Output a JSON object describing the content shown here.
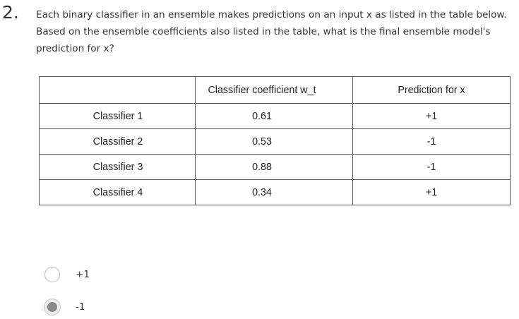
{
  "question": {
    "number": "2.",
    "text": "Each binary classifier in an ensemble makes predictions on an input x as listed in the table below. Based on the ensemble coefficients also listed in the table, what is the final ensemble model's prediction for x?"
  },
  "table": {
    "headers": [
      "",
      "Classifier coefficient w_t",
      "Prediction for x"
    ],
    "rows": [
      {
        "classifier": "Classifier 1",
        "coefficient": "0.61",
        "prediction": "+1"
      },
      {
        "classifier": "Classifier 2",
        "coefficient": "0.53",
        "prediction": "-1"
      },
      {
        "classifier": "Classifier 3",
        "coefficient": "0.88",
        "prediction": "-1"
      },
      {
        "classifier": "Classifier 4",
        "coefficient": "0.34",
        "prediction": "+1"
      }
    ]
  },
  "options": [
    {
      "label": "+1",
      "selected": false
    },
    {
      "label": "-1",
      "selected": true
    }
  ]
}
